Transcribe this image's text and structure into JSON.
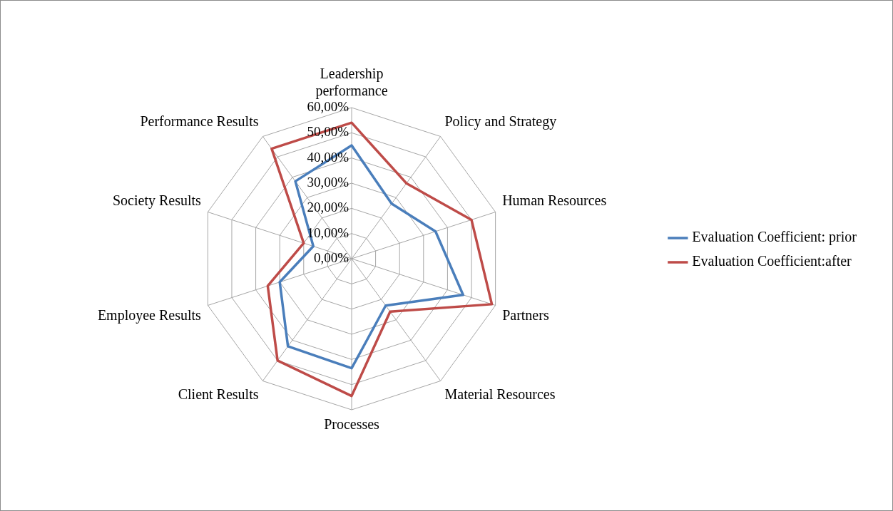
{
  "chart_data": {
    "type": "radar",
    "categories": [
      "Leadership performance",
      "Policy and Strategy",
      "Human Resources",
      "Partners",
      "Material Resources",
      "Processes",
      "Client Results",
      "Employee Results",
      "Society Results",
      "Performance Results"
    ],
    "series": [
      {
        "name": "Evaluation Coefficient: prior",
        "color": "#4a7ebb",
        "values": [
          45,
          27,
          35,
          46.5,
          23,
          43.5,
          43,
          30,
          16,
          38
        ]
      },
      {
        "name": "Evaluation Coefficient:after",
        "color": "#be4b48",
        "values": [
          54,
          37,
          50,
          58.5,
          26,
          54.5,
          50,
          35,
          20,
          54
        ]
      }
    ],
    "ylim": [
      0,
      60
    ],
    "yticks": [
      {
        "value": 0,
        "label": "0,00%"
      },
      {
        "value": 10,
        "label": "10,00%"
      },
      {
        "value": 20,
        "label": "20,00%"
      },
      {
        "value": 30,
        "label": "30,00%"
      },
      {
        "value": 40,
        "label": "40,00%"
      },
      {
        "value": 50,
        "label": "50,00%"
      },
      {
        "value": 60,
        "label": "60,00%"
      }
    ],
    "grid": true,
    "legend": "right",
    "marker": "none",
    "line_style": "solid"
  }
}
